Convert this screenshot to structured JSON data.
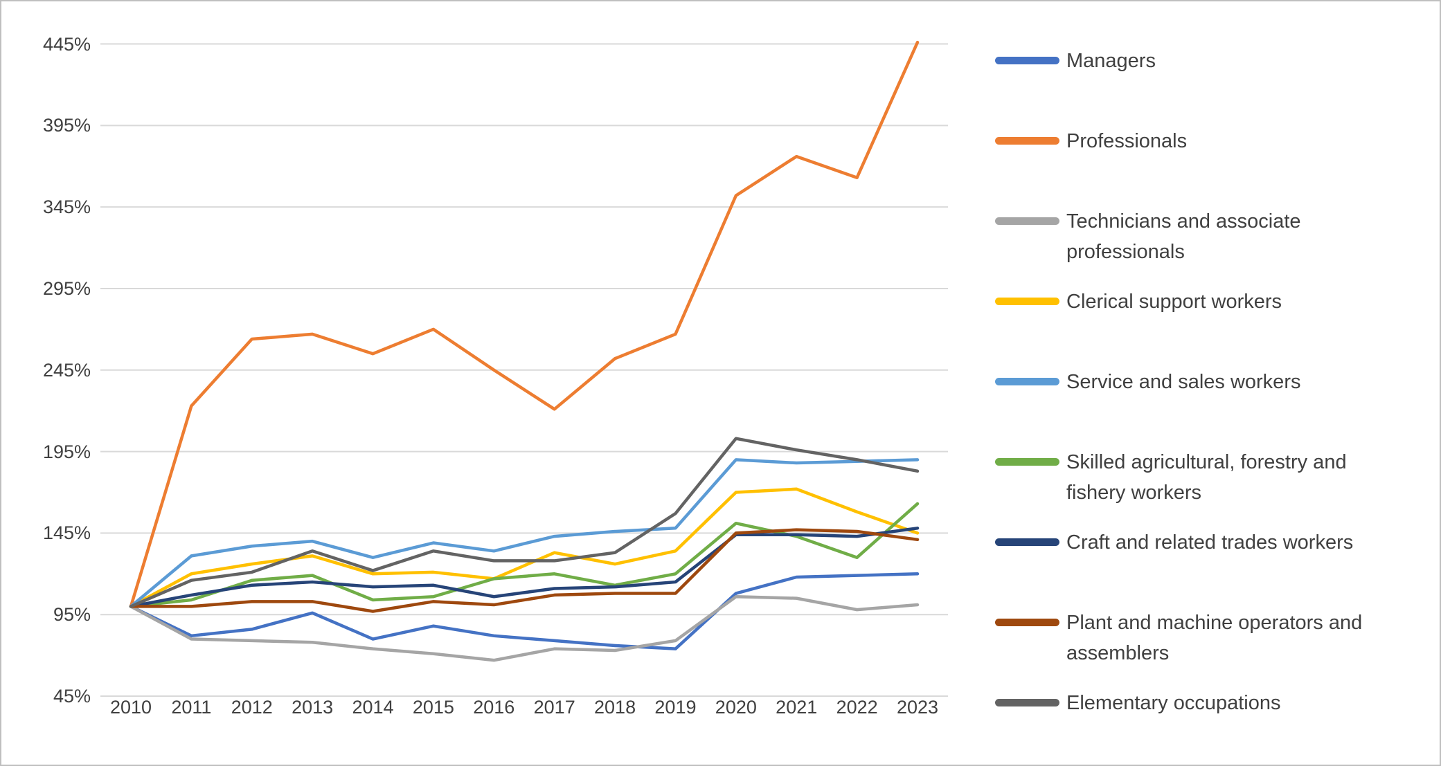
{
  "chart_data": {
    "type": "line",
    "title": "",
    "xlabel": "",
    "ylabel": "",
    "x_labels": [
      "2010",
      "2011",
      "2012",
      "2013",
      "2014",
      "2015",
      "2016",
      "2017",
      "2018",
      "2019",
      "2020",
      "2021",
      "2022",
      "2023"
    ],
    "y_tick_labels": [
      "45%",
      "95%",
      "145%",
      "195%",
      "245%",
      "295%",
      "345%",
      "395%",
      "445%"
    ],
    "yticks": [
      45,
      95,
      145,
      195,
      245,
      295,
      345,
      395,
      445
    ],
    "ylim": [
      45,
      445
    ],
    "unit": "%",
    "grid": true,
    "legend_position": "right",
    "gridline_color": "#D9D9D9",
    "axis_label_color": "#404040",
    "border_color": "#BFBFBF",
    "series": [
      {
        "name": "Managers",
        "color": "#4472C4",
        "values": [
          100,
          82,
          86,
          96,
          80,
          88,
          82,
          79,
          76,
          74,
          108,
          118,
          119,
          120
        ]
      },
      {
        "name": "Professionals",
        "color": "#ED7D31",
        "values": [
          100,
          223,
          264,
          267,
          255,
          270,
          245,
          221,
          252,
          267,
          352,
          376,
          363,
          446
        ]
      },
      {
        "name": "Technicians and associate professionals",
        "color": "#A5A5A5",
        "values": [
          100,
          80,
          79,
          78,
          74,
          71,
          67,
          74,
          73,
          79,
          106,
          105,
          98,
          101
        ]
      },
      {
        "name": "Clerical support workers",
        "color": "#FFC000",
        "values": [
          100,
          120,
          126,
          131,
          120,
          121,
          117,
          133,
          126,
          134,
          170,
          172,
          158,
          145
        ]
      },
      {
        "name": "Service and sales workers",
        "color": "#5B9BD5",
        "values": [
          100,
          131,
          137,
          140,
          130,
          139,
          134,
          143,
          146,
          148,
          190,
          188,
          189,
          190
        ]
      },
      {
        "name": "Skilled agricultural, forestry and fishery workers",
        "color": "#70AD47",
        "values": [
          100,
          104,
          116,
          119,
          104,
          106,
          117,
          120,
          113,
          120,
          151,
          143,
          130,
          163
        ]
      },
      {
        "name": "Craft and related trades workers",
        "color": "#264478",
        "values": [
          100,
          107,
          113,
          115,
          112,
          113,
          106,
          111,
          112,
          115,
          144,
          144,
          143,
          148
        ]
      },
      {
        "name": "Plant and machine operators and assemblers",
        "color": "#9E480E",
        "values": [
          100,
          100,
          103,
          103,
          97,
          103,
          101,
          107,
          108,
          108,
          145,
          147,
          146,
          141
        ]
      },
      {
        "name": "Elementary occupations",
        "color": "#636363",
        "values": [
          100,
          116,
          121,
          134,
          122,
          134,
          128,
          128,
          133,
          157,
          203,
          196,
          190,
          183
        ]
      }
    ]
  }
}
